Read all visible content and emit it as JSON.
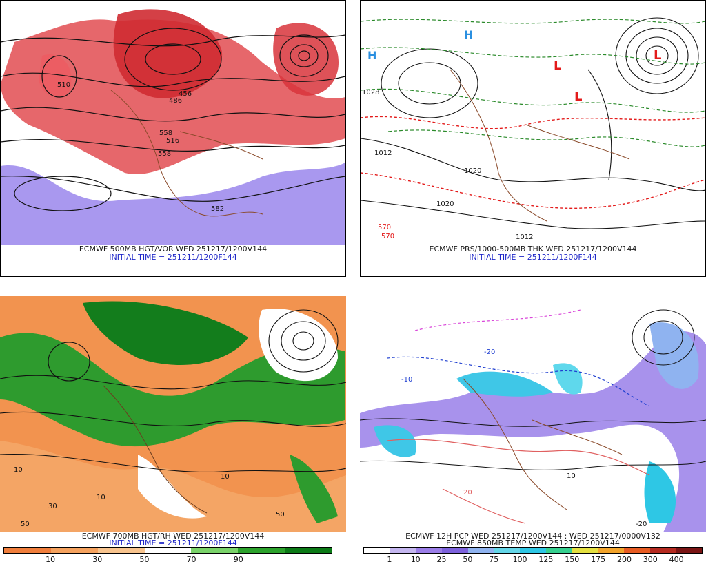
{
  "panels": {
    "hgt_vor": {
      "line1": "ECMWF 500MB HGT/VOR WED 251217/1200V144",
      "line2": "INITIAL TIME = 251211/1200F144",
      "labels": [
        "510",
        "558",
        "582",
        "516",
        "456",
        "486",
        "558"
      ]
    },
    "prs_thk": {
      "line1": "ECMWF PRS/1000-500MB THK WED 251217/1200V144",
      "line2": "INITIAL TIME = 251211/1200F144",
      "labels": [
        "1020",
        "1028",
        "1012",
        "1020",
        "1012",
        "570",
        "570"
      ],
      "highs": [
        "H",
        "H"
      ],
      "lows": [
        "L",
        "L",
        "L"
      ]
    },
    "hgt_rh": {
      "line1": "ECMWF 700MB HGT/RH WED 251217/1200V144",
      "line2": "INITIAL TIME = 251211/1200F144",
      "labels": [
        "10",
        "10",
        "10",
        "50",
        "50",
        "30"
      ],
      "legend_ticks": [
        "10",
        "30",
        "50",
        "70",
        "90"
      ],
      "legend_colors": [
        "#f07e3c",
        "#f5a25e",
        "#f8c48e",
        "#ffffff",
        "#7ad36a",
        "#2ca22c",
        "#0b7a16"
      ]
    },
    "pcp_temp": {
      "line1": "ECMWF 12H PCP WED 251217/1200V144 : WED 251217/0000V132",
      "line2": "ECMWF 850MB TEMP WED 251217/1200V144",
      "labels": [
        "-20",
        "-10",
        "10",
        "20",
        "-20"
      ],
      "legend_ticks": [
        "1",
        "10",
        "25",
        "50",
        "75",
        "100",
        "125",
        "150",
        "175",
        "200",
        "300",
        "400"
      ],
      "legend_colors": [
        "#ffffff",
        "#c5b7f0",
        "#9b7ee8",
        "#7d62dc",
        "#8fb3f0",
        "#64d6e8",
        "#2ec7e5",
        "#36d08f",
        "#e4e040",
        "#f2a32a",
        "#e75b22",
        "#b52a20",
        "#7a1414"
      ]
    }
  }
}
